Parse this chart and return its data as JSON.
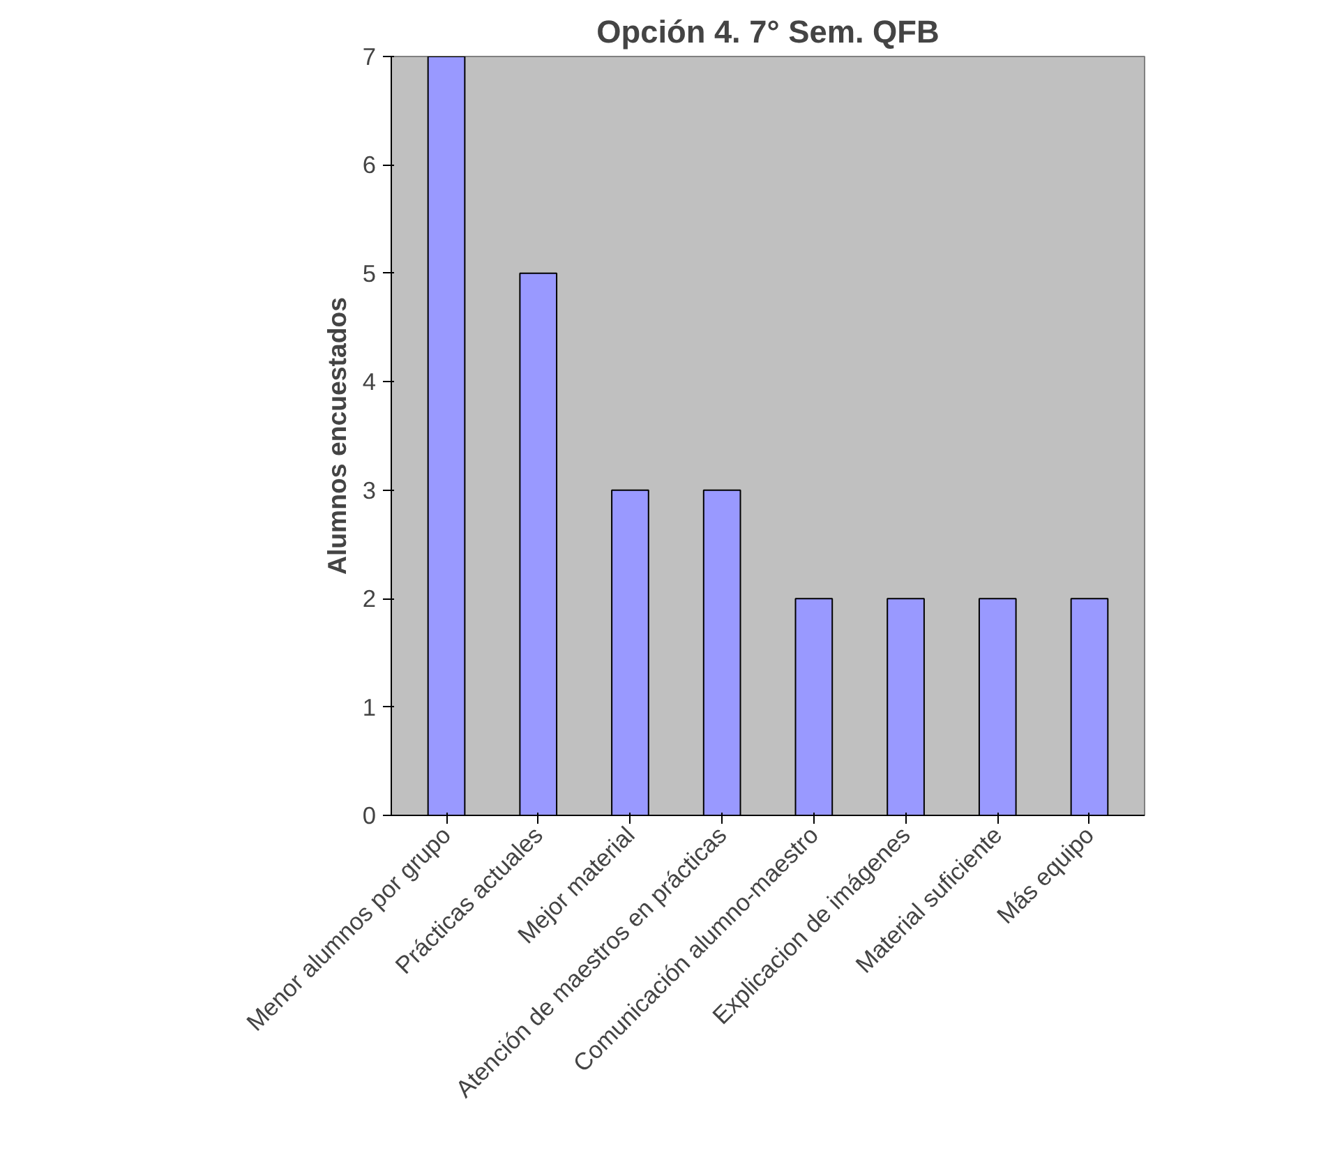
{
  "chart_data": {
    "type": "bar",
    "title": "Opción 4. 7° Sem. QFB",
    "ylabel": "Alumnos encuestados",
    "categories": [
      "Menor alumnos por grupo",
      "Prácticas actuales",
      "Mejor material",
      "Atención de maestros en prácticas",
      "Comunicación alumno-maestro",
      "Explicacion de imágenes",
      "Material suficiente",
      "Más equipo"
    ],
    "values": [
      7,
      5,
      3,
      3,
      2,
      2,
      2,
      2
    ],
    "color": "#9999ff",
    "ylim": [
      0,
      7
    ],
    "yticks": [
      0,
      1,
      2,
      3,
      4,
      5,
      6,
      7
    ]
  }
}
